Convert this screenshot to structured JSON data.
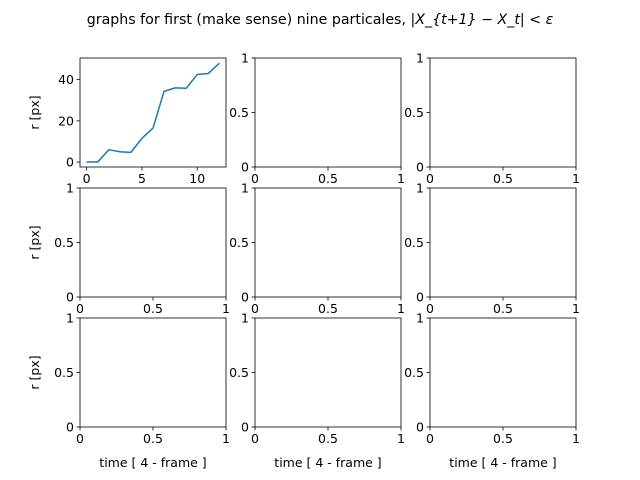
{
  "figure": {
    "title_text": "graphs for first (make sense) nine particales, ",
    "title_math": "|X_{t+1} − X_t| < ε"
  },
  "chart_data": [
    {
      "type": "line",
      "ylabel": "r [px]",
      "xlabel": "",
      "xlim": [
        -0.6,
        12.6
      ],
      "ylim": [
        -2.4,
        50.5
      ],
      "xticks": [
        0,
        5,
        10
      ],
      "yticks": [
        0,
        20,
        40
      ],
      "series": [
        {
          "color": "#1f77b4",
          "x": [
            0,
            1,
            2,
            3,
            4,
            5,
            6,
            7,
            8,
            9,
            10,
            11,
            12
          ],
          "y": [
            0,
            0,
            6,
            5,
            4.7,
            11.5,
            16.5,
            34.3,
            36,
            35.8,
            42.5,
            43,
            48
          ]
        }
      ]
    },
    {
      "type": "line",
      "xlabel": "",
      "ylabel": "",
      "xlim": [
        0,
        1
      ],
      "ylim": [
        0,
        1
      ],
      "xticks": [
        0,
        0.5,
        1
      ],
      "yticks": [
        0,
        0.5,
        1
      ],
      "series": []
    },
    {
      "type": "line",
      "xlabel": "",
      "ylabel": "",
      "xlim": [
        0,
        1
      ],
      "ylim": [
        0,
        1
      ],
      "xticks": [
        0,
        0.5,
        1
      ],
      "yticks": [
        0,
        0.5,
        1
      ],
      "series": []
    },
    {
      "type": "line",
      "xlabel": "",
      "ylabel": "r [px]",
      "xlim": [
        0,
        1
      ],
      "ylim": [
        0,
        1
      ],
      "xticks": [
        0,
        0.5,
        1
      ],
      "yticks": [
        0,
        0.5,
        1
      ],
      "series": []
    },
    {
      "type": "line",
      "xlabel": "",
      "ylabel": "",
      "xlim": [
        0,
        1
      ],
      "ylim": [
        0,
        1
      ],
      "xticks": [
        0,
        0.5,
        1
      ],
      "yticks": [
        0,
        0.5,
        1
      ],
      "series": []
    },
    {
      "type": "line",
      "xlabel": "",
      "ylabel": "",
      "xlim": [
        0,
        1
      ],
      "ylim": [
        0,
        1
      ],
      "xticks": [
        0,
        0.5,
        1
      ],
      "yticks": [
        0,
        0.5,
        1
      ],
      "series": []
    },
    {
      "type": "line",
      "xlabel": "time [ 4 - frame ]",
      "ylabel": "r [px]",
      "xlim": [
        0,
        1
      ],
      "ylim": [
        0,
        1
      ],
      "xticks": [
        0,
        0.5,
        1
      ],
      "yticks": [
        0,
        0.5,
        1
      ],
      "series": []
    },
    {
      "type": "line",
      "xlabel": "time [ 4 - frame ]",
      "ylabel": "",
      "xlim": [
        0,
        1
      ],
      "ylim": [
        0,
        1
      ],
      "xticks": [
        0,
        0.5,
        1
      ],
      "yticks": [
        0,
        0.5,
        1
      ],
      "series": []
    },
    {
      "type": "line",
      "xlabel": "time [ 4 - frame ]",
      "ylabel": "",
      "xlim": [
        0,
        1
      ],
      "ylim": [
        0,
        1
      ],
      "xticks": [
        0,
        0.5,
        1
      ],
      "yticks": [
        0,
        0.5,
        1
      ],
      "series": []
    }
  ]
}
